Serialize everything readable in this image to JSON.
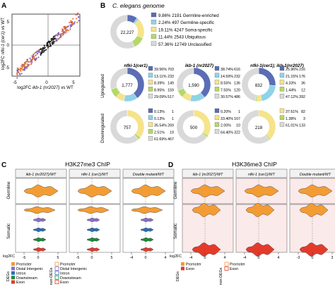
{
  "panels": {
    "A": {
      "letter": "A",
      "xlabel_pre": "log2FC",
      "xlabel_gene": "ikb-1 (nr2027)",
      "xlabel_post": "vs WT",
      "ylabel_pre": "log2FC",
      "ylabel_gene": "nfki-1 (cer1)",
      "ylabel_post": "vs WT",
      "xticks": [
        "-5",
        "0",
        "5"
      ],
      "yticks": [
        "5",
        "0",
        "-5"
      ]
    },
    "B": {
      "letter": "B",
      "title": "C. elegans genome",
      "genome_total": "22,227",
      "genome_legend": [
        {
          "pct": "9.86%",
          "count": "2191",
          "label": "Germline-enriched",
          "color": "#5b6db5"
        },
        {
          "pct": "2.24%",
          "count": "497",
          "label": "Germline-specific",
          "color": "#8fd3e8"
        },
        {
          "pct": "19.11%",
          "count": "4247",
          "label": "Soma-specific",
          "color": "#f6e38a"
        },
        {
          "pct": "11.44%",
          "count": "2543",
          "label": "Ubiquitous",
          "color": "#b6d86a"
        },
        {
          "pct": "57.36%",
          "count": "12749",
          "label": "Unclassified",
          "color": "#d9d9d9"
        }
      ],
      "column_titles": [
        "nfki-1(cer1)",
        "ikb-1 (nr2027)",
        "nfki-1(cer1); ikb-1(nr2027)"
      ],
      "row_labels": [
        "Upregulated",
        "Downregulated"
      ],
      "up": [
        {
          "total": "1,777",
          "rows": [
            [
              "39.56%",
              "703"
            ],
            [
              "13.11%",
              "233"
            ],
            [
              "8.39%",
              "149"
            ],
            [
              "8.95%",
              "159"
            ],
            [
              "29.09%",
              "517"
            ]
          ]
        },
        {
          "total": "1,590",
          "rows": [
            [
              "38.74%",
              "616"
            ],
            [
              "14.59%",
              "232"
            ],
            [
              "8.55%",
              "136"
            ],
            [
              "7.55%",
              "120"
            ],
            [
              "30.57%",
              "486"
            ]
          ]
        },
        {
          "total": "832",
          "rows": [
            [
              "25.96%",
              "216"
            ],
            [
              "21.15%",
              "176"
            ],
            [
              "4.33%",
              "36"
            ],
            [
              "1.44%",
              "12"
            ],
            [
              "47.12%",
              "392"
            ]
          ]
        }
      ],
      "down": [
        {
          "total": "757",
          "rows": [
            [
              "0.13%",
              "1"
            ],
            [
              "0.13%",
              "1"
            ],
            [
              "35.54%",
              "269"
            ],
            [
              "2.51%",
              "19"
            ],
            [
              "61.69%",
              "467"
            ]
          ]
        },
        {
          "total": "500",
          "rows": [
            [
              "0.20%",
              "1"
            ],
            [
              "33.40%",
              "167"
            ],
            [
              "2.00%",
              "10"
            ],
            [
              "64.40%",
              "322"
            ]
          ]
        },
        {
          "total": "218",
          "rows": [
            [
              "37.61%",
              "82"
            ],
            [
              "1.38%",
              "3"
            ],
            [
              "61.01%",
              "133"
            ]
          ]
        }
      ]
    },
    "C": {
      "letter": "C",
      "title": "H3K27me3 ChIP",
      "col_titles": [
        "ikb-1 (nr2027)/WT",
        "nfki-1 (cer1)/WT",
        "Double mutant/WT"
      ],
      "row_labels": [
        "Germline",
        "Somatic"
      ],
      "xaxis_label": "log2FC",
      "ticks_1": [
        "-5",
        "0",
        "5"
      ],
      "ticks_2": [
        "-5",
        "0",
        "5"
      ],
      "ticks_3": [
        "-4",
        "0",
        "4"
      ],
      "legend_degs_title": "DEGs",
      "legend_nondegs_title": "non-DEGs",
      "legend_items": [
        {
          "label": "Promoter",
          "color": "#f39c34"
        },
        {
          "label": "Distal Intergenic",
          "color": "#8a6fc9"
        },
        {
          "label": "Intron",
          "color": "#2a6fb3"
        },
        {
          "label": "Downstream",
          "color": "#1f8a3a"
        },
        {
          "label": "Exon",
          "color": "#e53a2a"
        }
      ]
    },
    "D": {
      "letter": "D",
      "title": "H3K36me3 ChIP",
      "col_titles": [
        "ikb-1 (nr2027)/WT",
        "nfki-1 (cer1)/WT",
        "Double mutant/WT"
      ],
      "row_labels": [
        "Germline",
        "Somatic"
      ],
      "xaxis_label": "log2FC",
      "ticks_1": [
        "-4",
        "0",
        "4"
      ],
      "ticks_2": [
        "-4",
        "0",
        "4"
      ],
      "ticks_3": [
        "-3",
        "0",
        "3"
      ],
      "legend_degs_title": "DEGs",
      "legend_nondegs_title": "non-DEGs",
      "legend_items": [
        {
          "label": "Promoter",
          "color": "#f39c34"
        },
        {
          "label": "Exon",
          "color": "#e53a2a"
        }
      ]
    }
  }
}
